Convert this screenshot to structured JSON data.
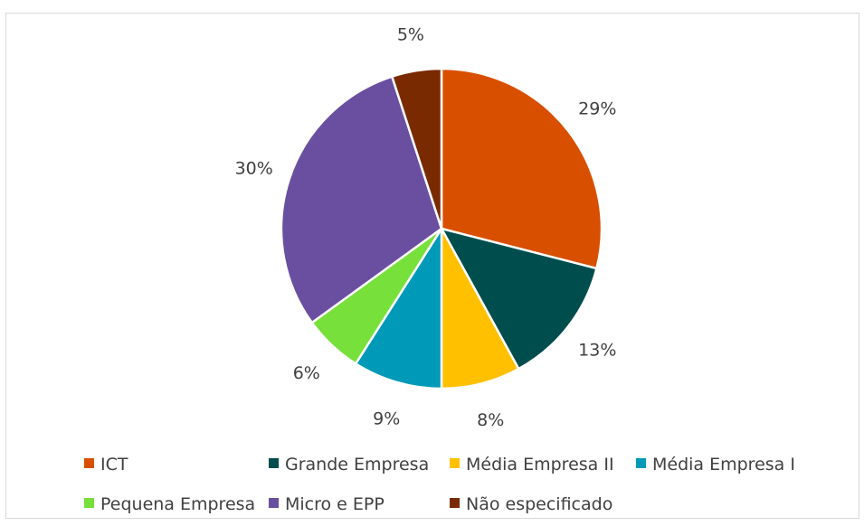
{
  "chart_data": {
    "type": "pie",
    "title": "",
    "categories": [
      "ICT",
      "Grande Empresa",
      "Média Empresa II",
      "Média Empresa I",
      "Pequena Empresa",
      "Micro e EPP",
      "Não especificado"
    ],
    "values": [
      29,
      13,
      8,
      9,
      6,
      30,
      5
    ],
    "labels": [
      "29%",
      "13%",
      "8%",
      "9%",
      "6%",
      "30%",
      "5%"
    ],
    "colors": [
      "#D94F00",
      "#004D4D",
      "#FFC000",
      "#0099B8",
      "#77E03A",
      "#6A4FA0",
      "#7A2A00"
    ],
    "legend_position": "bottom",
    "start_angle_deg": 0,
    "direction": "clockwise"
  }
}
